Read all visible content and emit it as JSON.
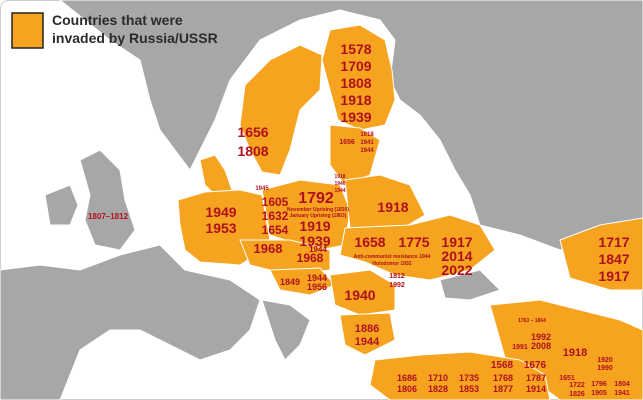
{
  "legend": {
    "lines": [
      "Countries that were",
      "invaded by Russia/USSR"
    ]
  },
  "labels": [
    {
      "lines": [
        "1578",
        "1709",
        "1808",
        "1918",
        "1939"
      ]
    },
    {
      "lines": [
        "1656",
        "1808"
      ]
    },
    {
      "lines": [
        "1949",
        "1953"
      ]
    },
    {
      "lines": [
        "1807–1812"
      ]
    },
    {
      "lines": [
        "1605",
        "1632",
        "1654"
      ]
    },
    {
      "lines": [
        "1792"
      ]
    },
    {
      "lines": [
        "November Uprising (1830)",
        "January Uprising (1863)"
      ]
    },
    {
      "lines": [
        "1919",
        "1939"
      ]
    },
    {
      "lines": [
        "1944"
      ]
    },
    {
      "lines": [
        "1945"
      ]
    },
    {
      "lines": [
        "1918"
      ]
    },
    {
      "lines": [
        "1656"
      ]
    },
    {
      "lines": [
        "1918",
        "1941",
        "1944"
      ]
    },
    {
      "lines": [
        "1918",
        "1940",
        "1944"
      ]
    },
    {
      "lines": [
        "1968"
      ]
    },
    {
      "lines": [
        "1968"
      ]
    },
    {
      "lines": [
        "1849"
      ]
    },
    {
      "lines": [
        "1944",
        "1956"
      ]
    },
    {
      "lines": [
        "1658"
      ]
    },
    {
      "lines": [
        "1775"
      ]
    },
    {
      "lines": [
        "1917",
        "2014",
        "2022"
      ]
    },
    {
      "lines": [
        "Anti-communist resistance 1944",
        "Holodomor 1932"
      ]
    },
    {
      "lines": [
        "1812",
        "1992"
      ]
    },
    {
      "lines": [
        "1940"
      ]
    },
    {
      "lines": [
        "1886",
        "1944"
      ]
    },
    {
      "lines": [
        "1717",
        "1847",
        "1917"
      ]
    },
    {
      "lines": [
        "1763 – 1864"
      ]
    },
    {
      "lines": [
        "1991"
      ]
    },
    {
      "lines": [
        "1992",
        "2008"
      ]
    },
    {
      "lines": [
        "1918"
      ]
    },
    {
      "lines": [
        "1920",
        "1990"
      ]
    },
    {
      "lines": [
        "1568"
      ]
    },
    {
      "lines": [
        "1676"
      ]
    },
    {
      "lines": [
        "1686",
        "1806"
      ]
    },
    {
      "lines": [
        "1710",
        "1828"
      ]
    },
    {
      "lines": [
        "1735",
        "1853"
      ]
    },
    {
      "lines": [
        "1768",
        "1877"
      ]
    },
    {
      "lines": [
        "1787",
        "1914"
      ]
    },
    {
      "lines": [
        "1651"
      ]
    },
    {
      "lines": [
        "1722",
        "1826"
      ]
    },
    {
      "lines": [
        "1796",
        "1905"
      ]
    },
    {
      "lines": [
        "1804",
        "1941"
      ]
    }
  ]
}
